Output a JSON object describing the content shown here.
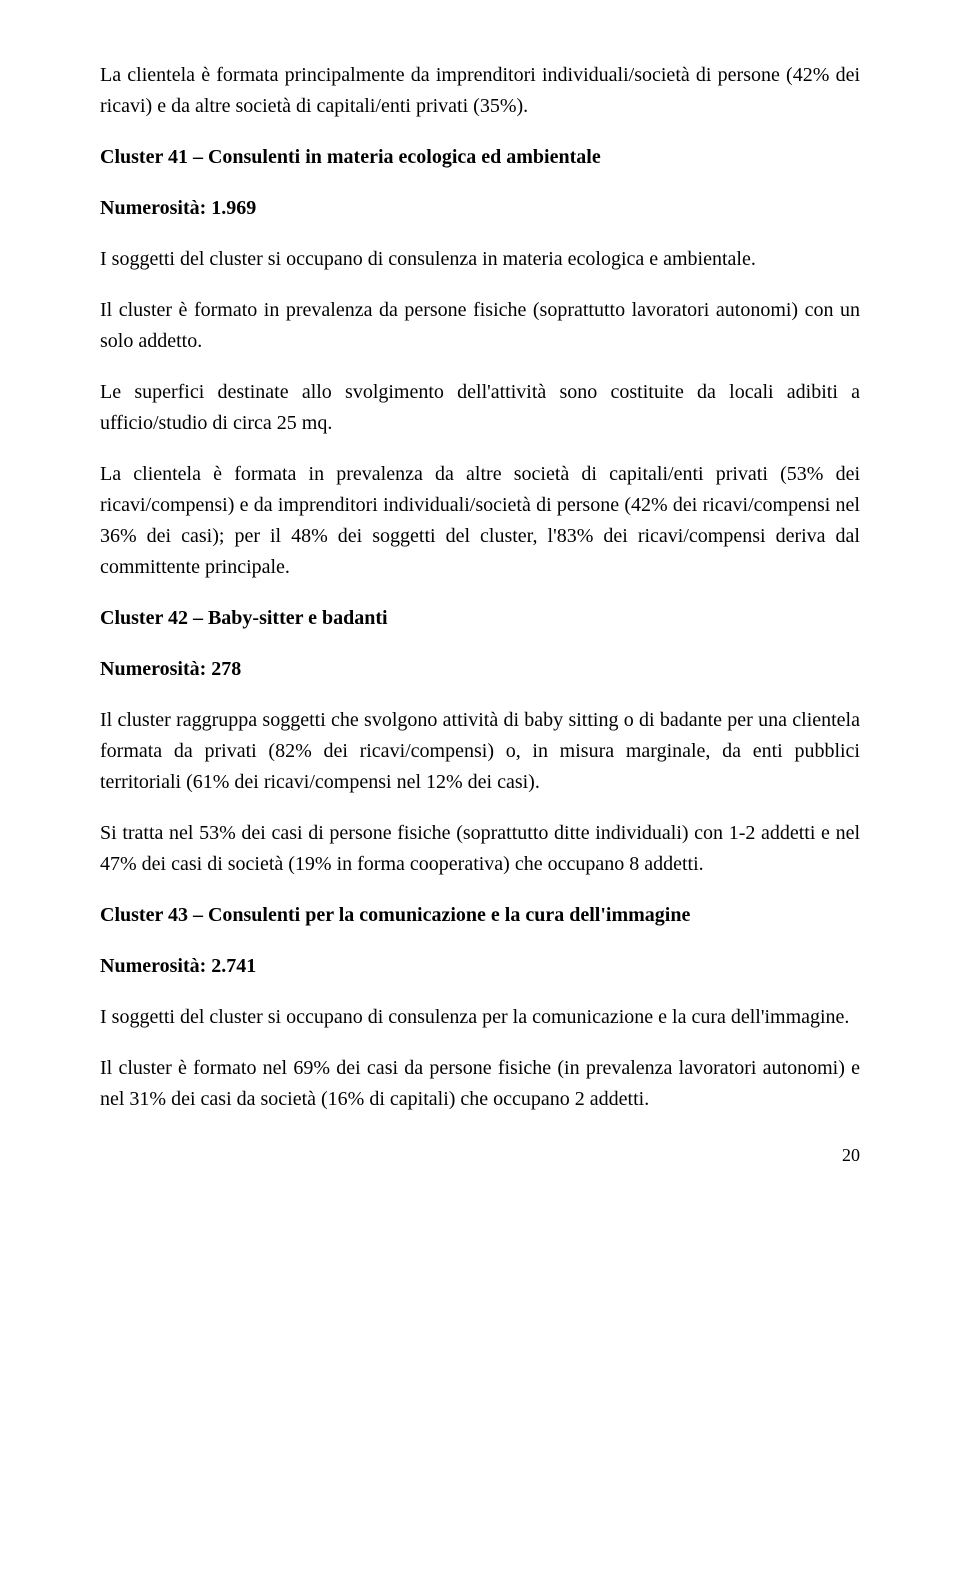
{
  "typography": {
    "font_family": "Times New Roman",
    "body_fontsize_pt": 15,
    "line_height": 1.55,
    "text_color": "#000000",
    "background_color": "#ffffff",
    "heading_weight": "bold",
    "alignment": "justify"
  },
  "page_number": "20",
  "paragraphs": {
    "p1": "La clientela è formata principalmente da imprenditori individuali/società di persone (42% dei ricavi) e da altre società di capitali/enti privati (35%).",
    "h41": "Cluster 41 – Consulenti in materia ecologica ed ambientale",
    "n41": "Numerosità: 1.969",
    "p41a": "I soggetti del cluster si occupano di consulenza in materia ecologica e ambientale.",
    "p41b": "Il cluster è formato in prevalenza da persone fisiche (soprattutto lavoratori autonomi) con un solo addetto.",
    "p41c": "Le superfici destinate allo svolgimento dell'attività sono costituite da locali adibiti a ufficio/studio di circa 25 mq.",
    "p41d": "La clientela è formata in prevalenza da altre società di capitali/enti privati (53% dei ricavi/compensi) e da imprenditori individuali/società di persone (42% dei ricavi/compensi nel 36% dei casi); per il 48% dei soggetti del cluster, l'83% dei ricavi/compensi deriva dal committente principale.",
    "h42": "Cluster 42 – Baby-sitter e badanti",
    "n42": "Numerosità: 278",
    "p42a": "Il cluster raggruppa soggetti che svolgono attività di baby sitting o di badante per una clientela formata da privati (82% dei ricavi/compensi) o, in misura marginale, da enti pubblici territoriali (61% dei ricavi/compensi nel 12% dei casi).",
    "p42b": "Si tratta nel 53% dei casi di persone fisiche (soprattutto ditte individuali) con 1-2 addetti e nel 47% dei casi di società (19% in forma cooperativa) che occupano 8 addetti.",
    "h43": "Cluster 43 – Consulenti per la comunicazione e la cura dell'immagine",
    "n43": "Numerosità: 2.741",
    "p43a": "I soggetti del cluster si occupano di consulenza per la comunicazione e la cura dell'immagine.",
    "p43b": "Il cluster è formato nel 69% dei casi da persone fisiche (in prevalenza lavoratori autonomi) e nel 31% dei casi da società (16% di capitali) che occupano 2 addetti."
  }
}
